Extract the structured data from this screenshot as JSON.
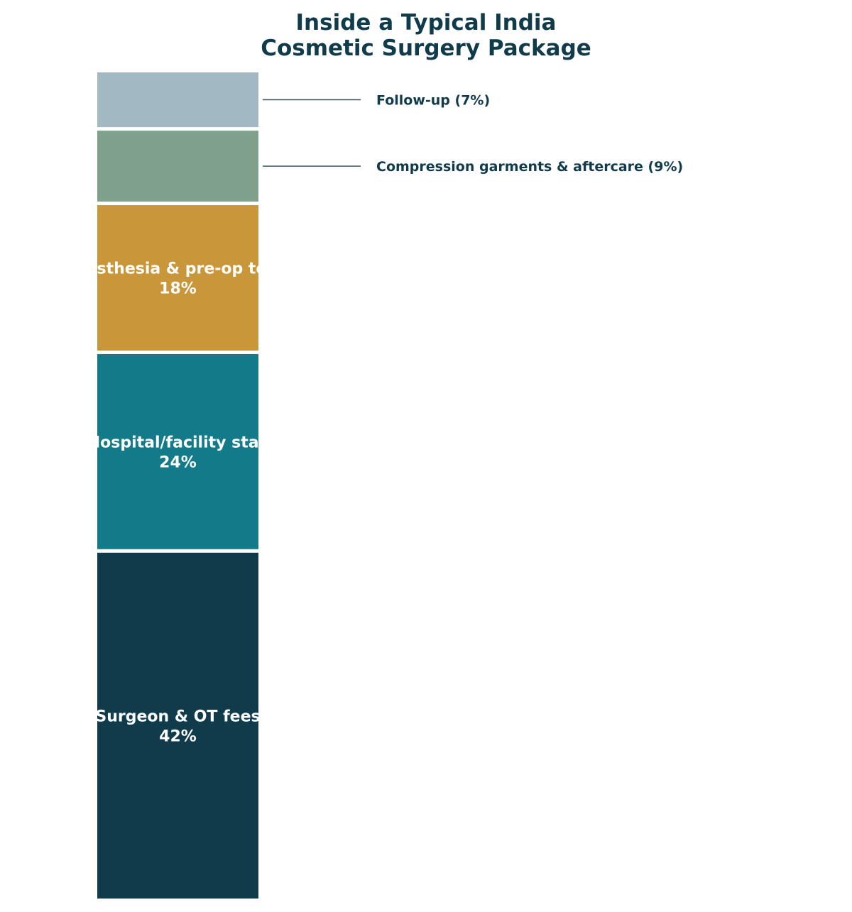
{
  "chart_data": {
    "type": "bar",
    "stacked": true,
    "orientation": "vertical",
    "unit": "%",
    "title_lines": [
      "Inside a Typical India",
      "Cosmetic Surgery Package"
    ],
    "total": 100,
    "segments": [
      {
        "name": "Surgeon & OT fees",
        "value": 42,
        "color": "#0f3b4a",
        "label_mode": "inside"
      },
      {
        "name": "Hospital/facility stay",
        "value": 24,
        "color": "#137a8a",
        "label_mode": "inside"
      },
      {
        "name": "Anesthesia & pre-op tests",
        "value": 18,
        "color": "#c9963a",
        "label_mode": "inside"
      },
      {
        "name": "Compression garments & aftercare",
        "value": 9,
        "color": "#7fa08b",
        "label_mode": "outside"
      },
      {
        "name": "Follow-up",
        "value": 7,
        "color": "#a2b8c2",
        "label_mode": "outside"
      }
    ]
  }
}
